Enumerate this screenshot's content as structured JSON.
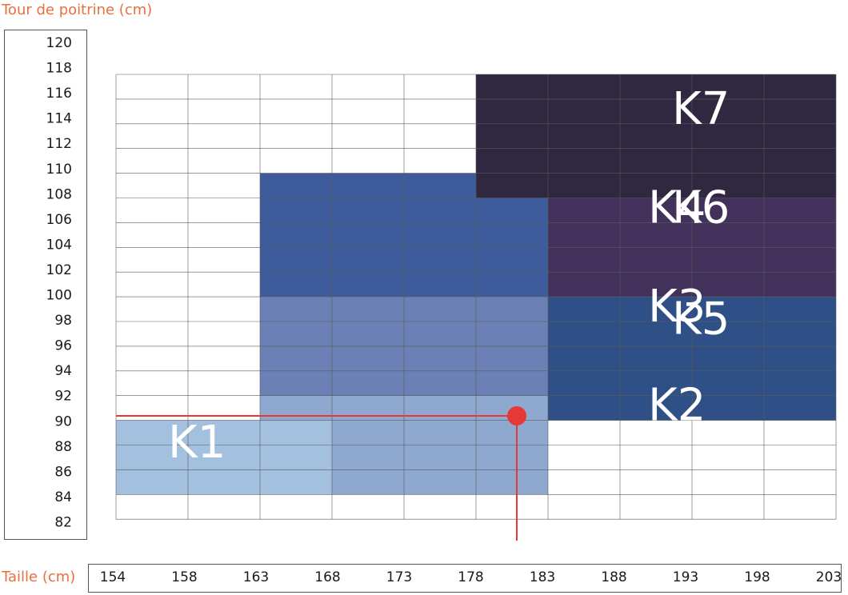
{
  "chart_data": {
    "type": "heatmap",
    "ylabel": "Tour de poitrine (cm)",
    "xlabel": "Taille (cm)",
    "y_ticks": [
      "120",
      "118",
      "116",
      "114",
      "112",
      "110",
      "108",
      "106",
      "104",
      "102",
      "100",
      "98",
      "96",
      "94",
      "92",
      "90",
      "88",
      "86",
      "84",
      "82"
    ],
    "x_ticks": [
      "154",
      "158",
      "163",
      "168",
      "173",
      "178",
      "183",
      "188",
      "193",
      "198",
      "203"
    ],
    "zones": [
      {
        "label": "K1",
        "color": "#a3c0df",
        "cells": [
          {
            "x": [
              154,
              168
            ],
            "y": [
              82,
              88
            ]
          }
        ]
      },
      {
        "label": "K2",
        "color": "#8fa8d0",
        "cells": [
          {
            "x": [
              163,
              178
            ],
            "y": [
              88,
              90
            ]
          },
          {
            "x": [
              168,
              183
            ],
            "y": [
              82,
              90
            ]
          }
        ]
      },
      {
        "label": "K3",
        "color": "#6b80b5",
        "cells": [
          {
            "x": [
              163,
              183
            ],
            "y": [
              90,
              98
            ]
          }
        ]
      },
      {
        "label": "K4",
        "color": "#3e5c9c",
        "cells": [
          {
            "x": [
              163,
              183
            ],
            "y": [
              98,
              108
            ]
          }
        ]
      },
      {
        "label": "K5",
        "color": "#2f4f87",
        "cells": [
          {
            "x": [
              183,
              203
            ],
            "y": [
              88,
              98
            ]
          }
        ]
      },
      {
        "label": "K6",
        "color": "#42315a",
        "cells": [
          {
            "x": [
              183,
              203
            ],
            "y": [
              98,
              106
            ]
          }
        ]
      },
      {
        "label": "K7",
        "color": "#302740",
        "cells": [
          {
            "x": [
              178,
              203
            ],
            "y": [
              106,
              116
            ]
          }
        ]
      }
    ],
    "marker": {
      "x": 183,
      "y": 90,
      "color": "#e53935"
    },
    "grid": true
  }
}
